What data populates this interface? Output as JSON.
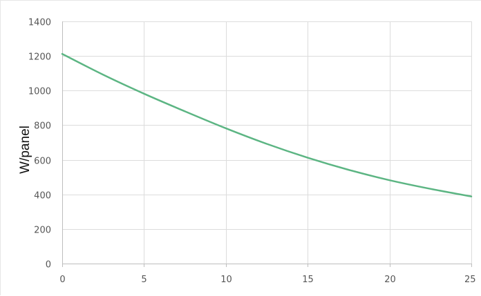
{
  "chart_data": {
    "type": "line",
    "title": "",
    "xlabel": "",
    "ylabel": "W/panel",
    "xlim": [
      0,
      25
    ],
    "ylim": [
      0,
      1400
    ],
    "x_ticks": [
      0,
      5,
      10,
      15,
      20,
      25
    ],
    "y_ticks": [
      0,
      200,
      400,
      600,
      800,
      1000,
      1200,
      1400
    ],
    "grid": true,
    "legend": "none",
    "series": [
      {
        "color": "#5cb583",
        "x": [
          0,
          2.5,
          5,
          7.5,
          10,
          12.5,
          15,
          17.5,
          20,
          22.5,
          25
        ],
        "y": [
          1212,
          1092,
          982,
          880,
          782,
          692,
          612,
          542,
          482,
          432,
          388
        ]
      }
    ]
  }
}
